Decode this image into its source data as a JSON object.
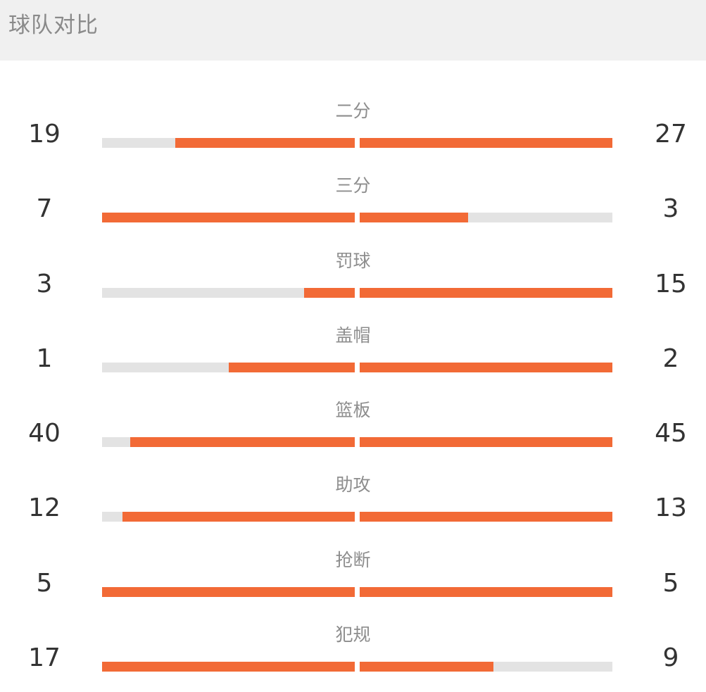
{
  "header": {
    "title": "球队对比"
  },
  "colors": {
    "accent": "#f26a36",
    "track": "#e3e3e3",
    "header_bg": "#f0f0f0"
  },
  "stats": [
    {
      "label": "二分",
      "left": "19",
      "right": "27",
      "left_fill": 0.71,
      "right_fill": 1.0
    },
    {
      "label": "三分",
      "left": "7",
      "right": "3",
      "left_fill": 1.0,
      "right_fill": 0.43
    },
    {
      "label": "罚球",
      "left": "3",
      "right": "15",
      "left_fill": 0.2,
      "right_fill": 1.0
    },
    {
      "label": "盖帽",
      "left": "1",
      "right": "2",
      "left_fill": 0.5,
      "right_fill": 1.0
    },
    {
      "label": "篮板",
      "left": "40",
      "right": "45",
      "left_fill": 0.89,
      "right_fill": 1.0
    },
    {
      "label": "助攻",
      "left": "12",
      "right": "13",
      "left_fill": 0.92,
      "right_fill": 1.0
    },
    {
      "label": "抢断",
      "left": "5",
      "right": "5",
      "left_fill": 1.0,
      "right_fill": 1.0
    },
    {
      "label": "犯规",
      "left": "17",
      "right": "9",
      "left_fill": 1.0,
      "right_fill": 0.53
    }
  ]
}
